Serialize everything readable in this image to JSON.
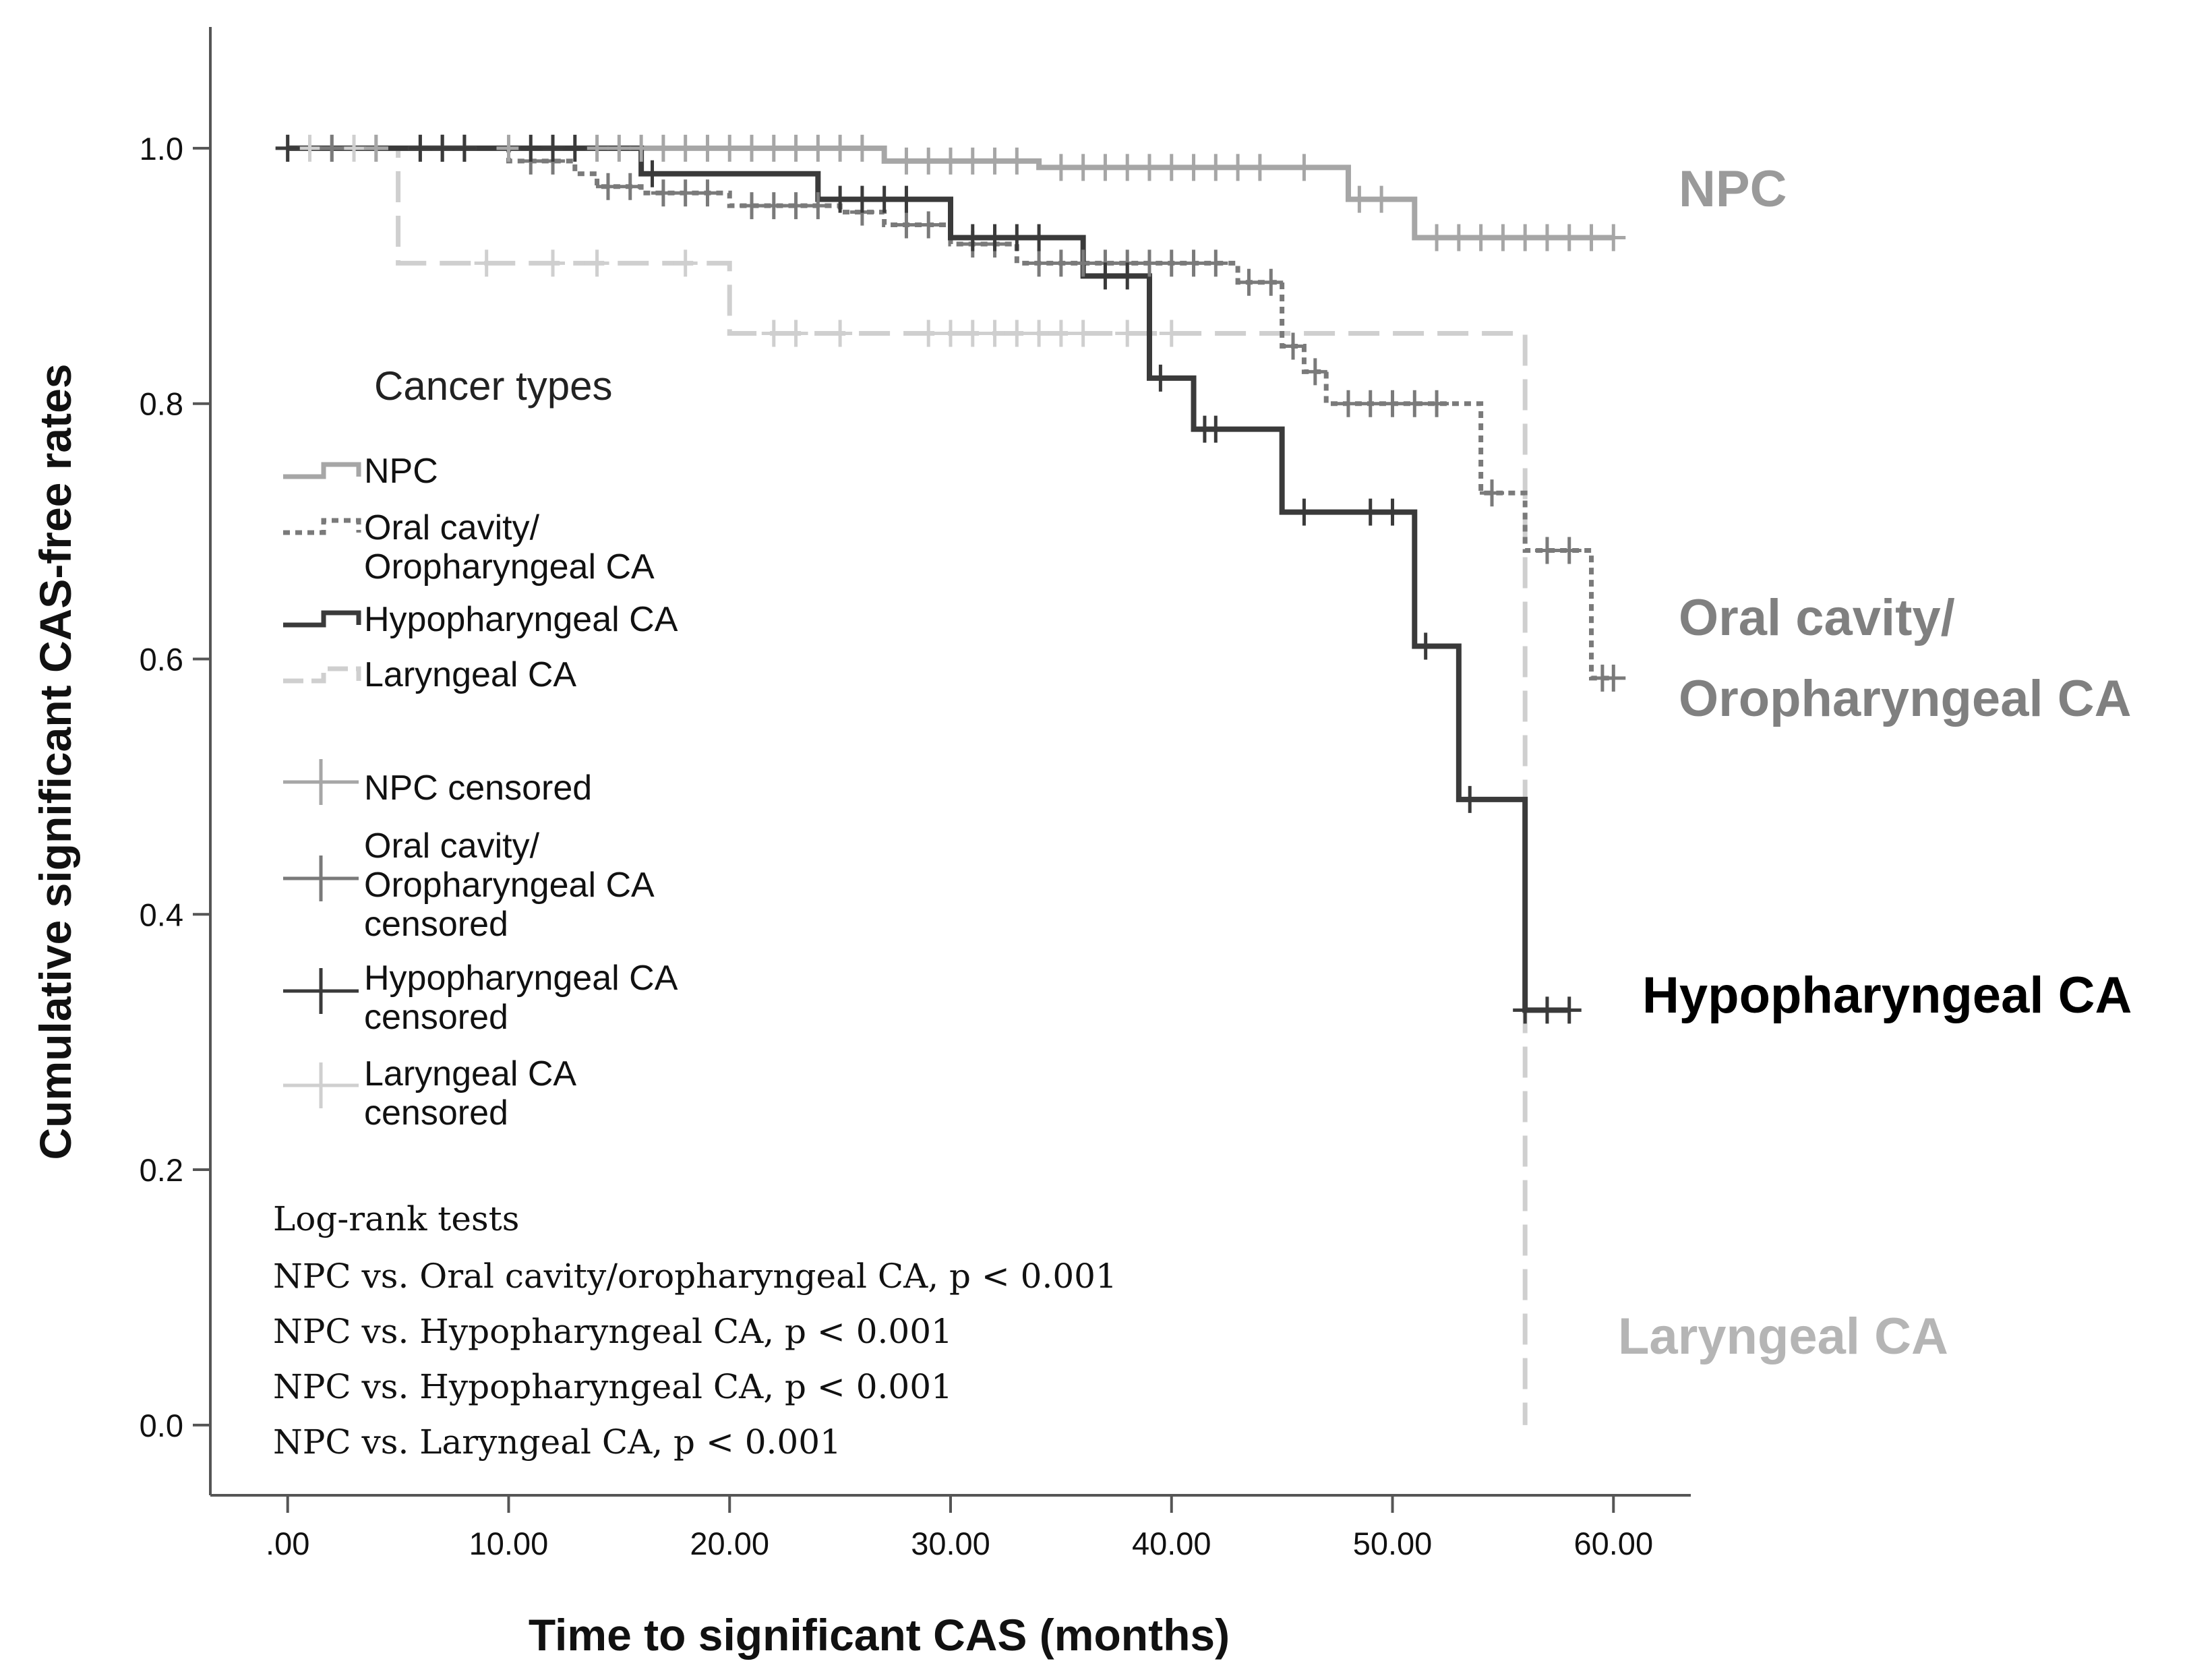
{
  "chart_data": {
    "type": "line",
    "subtype": "kaplan-meier",
    "xlabel": "Time to significant CAS (months)",
    "ylabel": "Cumulative significant CAS-free rates",
    "xlim": [
      -3.5,
      63.5
    ],
    "ylim": [
      -0.055,
      1.095
    ],
    "xticks": [
      0,
      10,
      20,
      30,
      40,
      50,
      60
    ],
    "xtick_labels": [
      ".00",
      "10.00",
      "20.00",
      "30.00",
      "40.00",
      "50.00",
      "60.00"
    ],
    "yticks": [
      0.0,
      0.2,
      0.4,
      0.6,
      0.8,
      1.0
    ],
    "ytick_labels": [
      "0.0",
      "0.2",
      "0.4",
      "0.6",
      "0.8",
      "1.0"
    ],
    "legend": {
      "title": "Cancer types",
      "placement": "center-left",
      "line_entries": [
        [
          "NPC"
        ],
        [
          "Oral cavity/",
          "Oropharyngeal CA"
        ],
        [
          "Hypopharyngeal CA"
        ],
        [
          "Laryngeal CA"
        ]
      ],
      "censor_entries": [
        [
          "NPC censored"
        ],
        [
          "Oral cavity/",
          "Oropharyngeal CA",
          "censored"
        ],
        [
          "Hypopharyngeal CA",
          "censored"
        ],
        [
          "Laryngeal CA",
          "censored"
        ]
      ]
    },
    "annotations": {
      "log_rank_title": "Log-rank tests",
      "log_rank_lines": [
        "NPC vs. Oral cavity/oropharyngeal CA, p < 0.001",
        "NPC vs. Hypopharyngeal CA, p < 0.001",
        "NPC vs. Hypopharyngeal CA, p < 0.001",
        "NPC vs. Laryngeal CA, p < 0.001"
      ]
    },
    "series": [
      {
        "name": "NPC",
        "end_label": [
          "NPC"
        ],
        "label_color": "#9a9a9a",
        "color": "#a6a6a6",
        "dash": "",
        "steps": [
          [
            0,
            1.0
          ],
          [
            27,
            0.99
          ],
          [
            34,
            0.985
          ],
          [
            48,
            0.96
          ],
          [
            51,
            0.93
          ],
          [
            60,
            0.93
          ]
        ],
        "censored": [
          [
            0,
            1.0
          ],
          [
            2,
            1.0
          ],
          [
            4,
            1.0
          ],
          [
            6,
            1.0
          ],
          [
            7,
            1.0
          ],
          [
            8,
            1.0
          ],
          [
            10,
            1.0
          ],
          [
            12,
            1.0
          ],
          [
            14,
            1.0
          ],
          [
            15,
            1.0
          ],
          [
            16,
            1.0
          ],
          [
            17,
            1.0
          ],
          [
            18,
            1.0
          ],
          [
            19,
            1.0
          ],
          [
            20,
            1.0
          ],
          [
            21,
            1.0
          ],
          [
            22,
            1.0
          ],
          [
            23,
            1.0
          ],
          [
            24,
            1.0
          ],
          [
            25,
            1.0
          ],
          [
            26,
            1.0
          ],
          [
            28,
            0.99
          ],
          [
            29,
            0.99
          ],
          [
            30,
            0.99
          ],
          [
            31,
            0.99
          ],
          [
            32,
            0.99
          ],
          [
            33,
            0.99
          ],
          [
            35,
            0.985
          ],
          [
            36,
            0.985
          ],
          [
            37,
            0.985
          ],
          [
            38,
            0.985
          ],
          [
            39,
            0.985
          ],
          [
            40,
            0.985
          ],
          [
            41,
            0.985
          ],
          [
            42,
            0.985
          ],
          [
            43,
            0.985
          ],
          [
            44,
            0.985
          ],
          [
            46,
            0.985
          ],
          [
            48.5,
            0.96
          ],
          [
            49.5,
            0.96
          ],
          [
            52,
            0.93
          ],
          [
            53,
            0.93
          ],
          [
            54,
            0.93
          ],
          [
            55,
            0.93
          ],
          [
            56,
            0.93
          ],
          [
            57,
            0.93
          ],
          [
            58,
            0.93
          ],
          [
            59,
            0.93
          ],
          [
            60,
            0.93
          ]
        ]
      },
      {
        "name": "Oral cavity/Oropharyngeal CA",
        "end_label": [
          "Oral cavity/",
          "Oropharyngeal CA"
        ],
        "label_color": "#808080",
        "color": "#7a7a7a",
        "dash": "10 8",
        "steps": [
          [
            0,
            1.0
          ],
          [
            10,
            0.99
          ],
          [
            13,
            0.98
          ],
          [
            14,
            0.97
          ],
          [
            16,
            0.965
          ],
          [
            20,
            0.955
          ],
          [
            25,
            0.95
          ],
          [
            27,
            0.94
          ],
          [
            30,
            0.925
          ],
          [
            33,
            0.91
          ],
          [
            43,
            0.895
          ],
          [
            45,
            0.845
          ],
          [
            46,
            0.825
          ],
          [
            47,
            0.8
          ],
          [
            54,
            0.73
          ],
          [
            56,
            0.685
          ],
          [
            59,
            0.585
          ],
          [
            60,
            0.585
          ]
        ],
        "censored": [
          [
            2,
            1.0
          ],
          [
            7,
            1.0
          ],
          [
            8,
            1.0
          ],
          [
            11,
            0.99
          ],
          [
            12,
            0.99
          ],
          [
            14.5,
            0.97
          ],
          [
            15.5,
            0.97
          ],
          [
            17,
            0.965
          ],
          [
            18,
            0.965
          ],
          [
            19,
            0.965
          ],
          [
            21,
            0.955
          ],
          [
            22,
            0.955
          ],
          [
            23,
            0.955
          ],
          [
            24,
            0.955
          ],
          [
            26,
            0.95
          ],
          [
            28,
            0.94
          ],
          [
            29,
            0.94
          ],
          [
            31,
            0.925
          ],
          [
            32,
            0.925
          ],
          [
            34,
            0.91
          ],
          [
            35,
            0.91
          ],
          [
            36,
            0.91
          ],
          [
            37,
            0.91
          ],
          [
            38,
            0.91
          ],
          [
            39,
            0.91
          ],
          [
            40,
            0.91
          ],
          [
            41,
            0.91
          ],
          [
            42,
            0.91
          ],
          [
            43.5,
            0.895
          ],
          [
            44.5,
            0.895
          ],
          [
            45.5,
            0.845
          ],
          [
            46.5,
            0.825
          ],
          [
            48,
            0.8
          ],
          [
            49,
            0.8
          ],
          [
            50,
            0.8
          ],
          [
            51,
            0.8
          ],
          [
            52,
            0.8
          ],
          [
            54.5,
            0.73
          ],
          [
            57,
            0.685
          ],
          [
            58,
            0.685
          ],
          [
            59.5,
            0.585
          ],
          [
            60,
            0.585
          ]
        ]
      },
      {
        "name": "Hypopharyngeal CA",
        "end_label": [
          "Hypopharyngeal CA"
        ],
        "label_color": "#000000",
        "color": "#3a3a3a",
        "dash": "",
        "steps": [
          [
            0,
            1.0
          ],
          [
            16,
            0.98
          ],
          [
            24,
            0.96
          ],
          [
            30,
            0.93
          ],
          [
            36,
            0.9
          ],
          [
            39,
            0.82
          ],
          [
            41,
            0.78
          ],
          [
            45,
            0.715
          ],
          [
            51,
            0.61
          ],
          [
            53,
            0.49
          ],
          [
            56,
            0.325
          ],
          [
            58,
            0.325
          ]
        ],
        "censored": [
          [
            0,
            1.0
          ],
          [
            6,
            1.0
          ],
          [
            7,
            1.0
          ],
          [
            8,
            1.0
          ],
          [
            11,
            1.0
          ],
          [
            12,
            1.0
          ],
          [
            13,
            1.0
          ],
          [
            16.5,
            0.98
          ],
          [
            25,
            0.96
          ],
          [
            26,
            0.96
          ],
          [
            27,
            0.96
          ],
          [
            28,
            0.96
          ],
          [
            31,
            0.93
          ],
          [
            32,
            0.93
          ],
          [
            33,
            0.93
          ],
          [
            34,
            0.93
          ],
          [
            37,
            0.9
          ],
          [
            38,
            0.9
          ],
          [
            39.5,
            0.82
          ],
          [
            41.5,
            0.78
          ],
          [
            42,
            0.78
          ],
          [
            46,
            0.715
          ],
          [
            49,
            0.715
          ],
          [
            50,
            0.715
          ],
          [
            51.5,
            0.61
          ],
          [
            53.5,
            0.49
          ],
          [
            56,
            0.325
          ],
          [
            57,
            0.325
          ],
          [
            58,
            0.325
          ]
        ]
      },
      {
        "name": "Laryngeal CA",
        "end_label": [
          "Laryngeal CA"
        ],
        "label_color": "#b5b5b5",
        "color": "#cfcfcf",
        "dash": "46 20",
        "steps": [
          [
            0,
            1.0
          ],
          [
            5,
            0.91
          ],
          [
            20,
            0.855
          ],
          [
            56,
            0.0
          ]
        ],
        "censored": [
          [
            1,
            1.0
          ],
          [
            3,
            1.0
          ],
          [
            4,
            1.0
          ],
          [
            9,
            0.91
          ],
          [
            12,
            0.91
          ],
          [
            14,
            0.91
          ],
          [
            18,
            0.91
          ],
          [
            22,
            0.855
          ],
          [
            23,
            0.855
          ],
          [
            25,
            0.855
          ],
          [
            29,
            0.855
          ],
          [
            30,
            0.855
          ],
          [
            31,
            0.855
          ],
          [
            32,
            0.855
          ],
          [
            33,
            0.855
          ],
          [
            34,
            0.855
          ],
          [
            35,
            0.855
          ],
          [
            36,
            0.855
          ],
          [
            38,
            0.855
          ],
          [
            40,
            0.855
          ]
        ]
      }
    ]
  }
}
